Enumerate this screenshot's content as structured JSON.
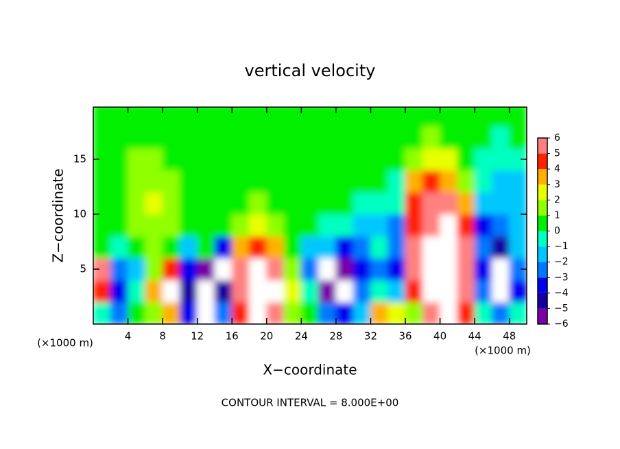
{
  "chart_data": {
    "type": "heatmap",
    "title": "vertical velocity",
    "x_label": "X−coordinate",
    "y_label": "Z−coordinate",
    "x_unit_labels": [
      "(×1000 m)",
      "(×1000 m)"
    ],
    "footer": "CONTOUR INTERVAL = 8.000E+00",
    "xlim": [
      0,
      50
    ],
    "ylim": [
      0,
      19.75
    ],
    "xticks": [
      4,
      8,
      12,
      16,
      20,
      24,
      28,
      32,
      36,
      40,
      44,
      48
    ],
    "yticks": [
      5,
      10,
      15
    ],
    "x": [
      1,
      3,
      5,
      7,
      9,
      11,
      13,
      15,
      17,
      19,
      21,
      23,
      25,
      27,
      29,
      31,
      33,
      35,
      37,
      39,
      41,
      43,
      45,
      47,
      49
    ],
    "y": [
      1,
      3,
      5,
      7,
      9,
      11,
      13,
      15,
      17,
      19
    ],
    "z": [
      [
        -1,
        -3,
        0,
        1,
        3,
        -4,
        -8,
        -3,
        4,
        8,
        5,
        1,
        0,
        -3,
        -4,
        -2,
        3,
        2,
        1,
        6,
        8,
        4,
        -1,
        -3,
        -1
      ],
      [
        4,
        -4,
        -1,
        3,
        8,
        -5,
        -8,
        -5,
        5,
        8,
        7,
        2,
        -1,
        -6,
        -8,
        -3,
        -1,
        -2,
        4,
        8,
        8,
        6,
        -3,
        -8,
        -4
      ],
      [
        5,
        -3,
        -2,
        1,
        4,
        -4,
        -6,
        -8,
        5,
        8,
        6,
        1,
        -3,
        -8,
        -6,
        -4,
        -3,
        -4,
        5,
        8,
        8,
        5,
        -4,
        -8,
        -3
      ],
      [
        0,
        -1,
        0,
        1,
        0,
        -2,
        0,
        -4,
        3,
        4,
        3,
        0,
        -2,
        -2,
        -4,
        -3,
        -1,
        -3,
        5,
        8,
        8,
        5,
        -3,
        -5,
        -2
      ],
      [
        0,
        0,
        1,
        1,
        1,
        0,
        0,
        0,
        1,
        2,
        1,
        0,
        0,
        -1,
        -1,
        -2,
        -2,
        -3,
        4,
        6,
        8,
        4,
        -4,
        -3,
        -2
      ],
      [
        0,
        0,
        1,
        2,
        1,
        0,
        0,
        0,
        0,
        1,
        0,
        0,
        0,
        0,
        0,
        -1,
        -1,
        -1,
        4,
        5,
        5,
        3,
        -2,
        -2,
        -2
      ],
      [
        0,
        0.5,
        1,
        1.5,
        1,
        0,
        0,
        0,
        0,
        0,
        0,
        0,
        0,
        0,
        0,
        0,
        0,
        -1,
        3,
        4,
        3,
        1,
        -1,
        -2,
        -2
      ],
      [
        0,
        0.5,
        1,
        1,
        0.5,
        0,
        0,
        0,
        0,
        0,
        0,
        0,
        0,
        0,
        0,
        0,
        0,
        0,
        1,
        2,
        2,
        0,
        -1,
        -1,
        -1
      ],
      [
        0,
        0,
        0.5,
        0.5,
        0,
        0,
        0,
        0,
        0,
        0,
        0,
        0,
        0,
        0,
        0,
        0,
        0,
        0,
        0,
        1,
        0.5,
        0,
        0,
        -0.5,
        0
      ],
      [
        0,
        0,
        0,
        0,
        0,
        0,
        0,
        0,
        0,
        0,
        0,
        0,
        0,
        0,
        0,
        0,
        0,
        0,
        0,
        0,
        0,
        0,
        0,
        0,
        0
      ]
    ],
    "colorbar": {
      "ticks": [
        {
          "value": -6,
          "label": "−6"
        },
        {
          "value": -5,
          "label": "−5"
        },
        {
          "value": -4,
          "label": "−4"
        },
        {
          "value": -3,
          "label": "−3"
        },
        {
          "value": -2,
          "label": "−2"
        },
        {
          "value": -1,
          "label": "−1"
        },
        0,
        1,
        2,
        3,
        4,
        5,
        6
      ],
      "colors": [
        "#7a00a8",
        "#1400a0",
        "#0000f0",
        "#0078ff",
        "#00c8ff",
        "#00ffc0",
        "#00f000",
        "#90ff00",
        "#e8ff00",
        "#ffb000",
        "#ff2000",
        "#ff8080"
      ],
      "over_color": "#ffffff",
      "under_color": "#ffffff"
    }
  }
}
